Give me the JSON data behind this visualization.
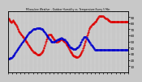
{
  "title": "Milwaukee Weather - Outdoor Humidity vs. Temperature Every 5 Min",
  "background_color": "#c8c8c8",
  "plot_bg_color": "#c8c8c8",
  "grid_color": "#ffffff",
  "red_color": "#dd0000",
  "blue_color": "#0000cc",
  "ylim": [
    0,
    100
  ],
  "xlim": [
    0,
    287
  ],
  "red_points": [
    88,
    87,
    86,
    85,
    84,
    83,
    82,
    81,
    82,
    83,
    84,
    85,
    84,
    83,
    82,
    81,
    80,
    79,
    78,
    77,
    76,
    75,
    73,
    71,
    70,
    68,
    67,
    66,
    65,
    64,
    63,
    62,
    61,
    60,
    59,
    58,
    57,
    56,
    55,
    54,
    53,
    52,
    51,
    50,
    49,
    48,
    47,
    46,
    45,
    44,
    43,
    42,
    41,
    40,
    39,
    38,
    37,
    36,
    35,
    35,
    34,
    33,
    33,
    32,
    32,
    31,
    31,
    30,
    30,
    29,
    29,
    29,
    29,
    29,
    29,
    29,
    30,
    30,
    30,
    31,
    32,
    33,
    34,
    35,
    37,
    39,
    41,
    43,
    45,
    47,
    49,
    51,
    53,
    55,
    57,
    59,
    60,
    61,
    62,
    62,
    62,
    62,
    61,
    60,
    59,
    58,
    57,
    56,
    55,
    54,
    53,
    52,
    51,
    51,
    50,
    50,
    50,
    50,
    50,
    50,
    51,
    51,
    51,
    52,
    52,
    53,
    53,
    54,
    54,
    53,
    53,
    52,
    52,
    51,
    50,
    49,
    49,
    48,
    47,
    46,
    45,
    44,
    43,
    42,
    41,
    40,
    38,
    36,
    35,
    34,
    33,
    32,
    31,
    30,
    29,
    28,
    27,
    27,
    26,
    26,
    26,
    26,
    25,
    25,
    25,
    25,
    25,
    25,
    26,
    26,
    27,
    28,
    29,
    30,
    31,
    32,
    34,
    35,
    37,
    39,
    41,
    43,
    45,
    47,
    49,
    51,
    53,
    56,
    58,
    60,
    62,
    64,
    66,
    68,
    70,
    72,
    73,
    74,
    75,
    76,
    77,
    78,
    78,
    79,
    80,
    80,
    81,
    82,
    82,
    83,
    84,
    85,
    86,
    87,
    88,
    89,
    90,
    91,
    91,
    92,
    92,
    92,
    92,
    92,
    92,
    92,
    92,
    91,
    91,
    90,
    90,
    89,
    89,
    88,
    88,
    87,
    87,
    86,
    86,
    85,
    85,
    84,
    84,
    84,
    83,
    83,
    83,
    83,
    83,
    83,
    83,
    83,
    83,
    83,
    83,
    83,
    83,
    83,
    83,
    83,
    83,
    83,
    83,
    83,
    83,
    83,
    83,
    83,
    83,
    83,
    83,
    83,
    83,
    83,
    83,
    83,
    83,
    83,
    83,
    83,
    83,
    83,
    83,
    83,
    83,
    83,
    83,
    83
  ],
  "blue_points": [
    22,
    22,
    22,
    22,
    23,
    23,
    23,
    24,
    24,
    25,
    25,
    26,
    27,
    28,
    29,
    30,
    31,
    32,
    33,
    34,
    35,
    36,
    37,
    38,
    39,
    40,
    41,
    42,
    43,
    44,
    45,
    46,
    47,
    48,
    49,
    50,
    51,
    52,
    53,
    54,
    55,
    56,
    57,
    58,
    59,
    60,
    61,
    62,
    63,
    64,
    65,
    65,
    66,
    66,
    67,
    67,
    68,
    68,
    69,
    69,
    70,
    70,
    70,
    71,
    71,
    71,
    71,
    72,
    72,
    72,
    72,
    72,
    72,
    72,
    72,
    72,
    72,
    72,
    71,
    71,
    71,
    70,
    70,
    69,
    68,
    67,
    67,
    66,
    65,
    64,
    63,
    62,
    61,
    60,
    59,
    58,
    57,
    56,
    55,
    54,
    53,
    52,
    51,
    50,
    50,
    50,
    50,
    50,
    50,
    50,
    50,
    50,
    51,
    51,
    51,
    52,
    52,
    52,
    53,
    53,
    54,
    54,
    54,
    55,
    55,
    55,
    55,
    56,
    56,
    55,
    55,
    55,
    54,
    54,
    53,
    53,
    52,
    51,
    51,
    50,
    49,
    48,
    47,
    46,
    45,
    44,
    43,
    42,
    41,
    41,
    40,
    40,
    39,
    39,
    39,
    38,
    38,
    38,
    38,
    38,
    38,
    38,
    38,
    39,
    39,
    40,
    40,
    41,
    42,
    43,
    44,
    45,
    46,
    48,
    49,
    50,
    52,
    53,
    54,
    55,
    56,
    57,
    58,
    58,
    58,
    58,
    58,
    57,
    56,
    55,
    54,
    53,
    52,
    51,
    50,
    49,
    48,
    47,
    46,
    45,
    44,
    43,
    42,
    41,
    40,
    39,
    38,
    37,
    37,
    36,
    36,
    36,
    36,
    36,
    36,
    36,
    36,
    36,
    36,
    36,
    36,
    36,
    36,
    36,
    36,
    36,
    36,
    36,
    36,
    36,
    36,
    36,
    36,
    36,
    36,
    36,
    36,
    36,
    36,
    36,
    36,
    36,
    36,
    36,
    36,
    36,
    36,
    36,
    36,
    36,
    36,
    36,
    36,
    36,
    36,
    36,
    36,
    36,
    36,
    36,
    36,
    36,
    36,
    36,
    36,
    36,
    36,
    36,
    36,
    36,
    36,
    36,
    36,
    36,
    36,
    36,
    36,
    36,
    36,
    36,
    36,
    36,
    36,
    36,
    36,
    36,
    36,
    36
  ],
  "n_xticks": 30,
  "right_ytick_vals": [
    10,
    20,
    30,
    40,
    50,
    60,
    70,
    80,
    90
  ],
  "right_ytick_labels": [
    "10",
    "20",
    "30",
    "40",
    "50",
    "60",
    "70",
    "80",
    "90"
  ],
  "marker_size": 1.2,
  "line_width": 0.7
}
